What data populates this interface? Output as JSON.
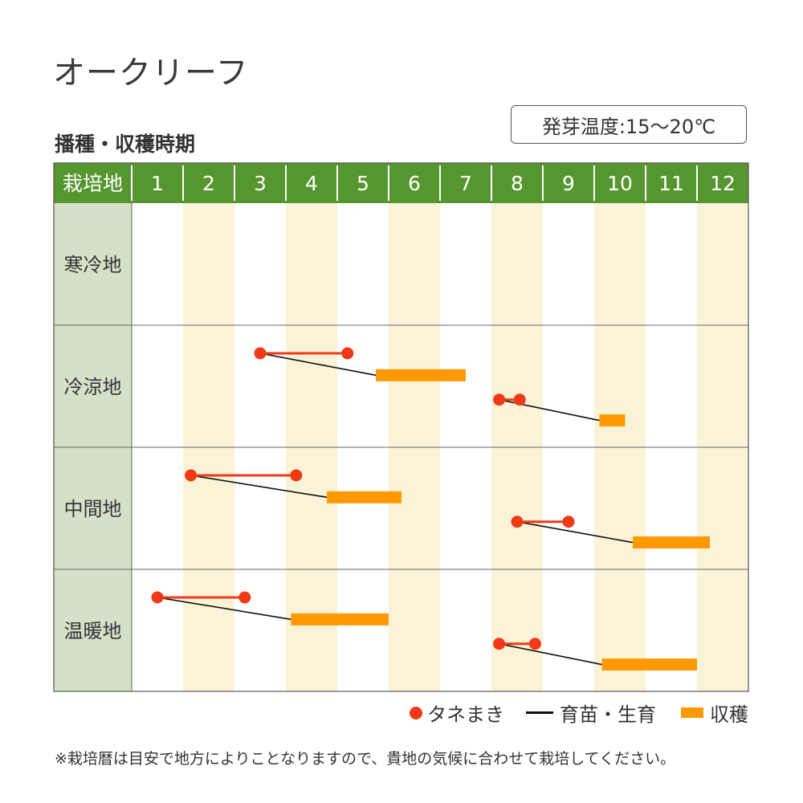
{
  "title": "オークリーフ",
  "subtitle": "播種・収穫時期",
  "germination_temp": "発芽温度:15〜20℃",
  "note": "※栽培暦は目安で地方によりことなりますので、貴地の気候に合わせて栽培してください。",
  "colors": {
    "header_green": "#56962f",
    "row_label_bg": "#d5e0c8",
    "stripe": "#fbf3d7",
    "sowing": "#f03a17",
    "seedling": "#111111",
    "harvest": "#ff9900"
  },
  "chart_data": {
    "type": "table",
    "header_label": "栽培地",
    "months": [
      "1",
      "2",
      "3",
      "4",
      "5",
      "6",
      "7",
      "8",
      "9",
      "10",
      "11",
      "12"
    ],
    "legend": {
      "sowing": "タネまき",
      "seedling": "育苗・生育",
      "harvest": "収穫"
    },
    "rows": [
      {
        "region": "寒冷地",
        "schedules": []
      },
      {
        "region": "冷涼地",
        "schedules": [
          {
            "lane": 0,
            "sow_start": 3.5,
            "sow_end": 5.2,
            "harvest_start": 5.75,
            "harvest_end": 7.5
          },
          {
            "lane": 1,
            "sow_start": 8.15,
            "sow_end": 8.55,
            "harvest_start": 10.1,
            "harvest_end": 10.6
          }
        ]
      },
      {
        "region": "中間地",
        "schedules": [
          {
            "lane": 0,
            "sow_start": 2.15,
            "sow_end": 4.2,
            "harvest_start": 4.8,
            "harvest_end": 6.25
          },
          {
            "lane": 1,
            "sow_start": 8.5,
            "sow_end": 9.5,
            "harvest_start": 10.75,
            "harvest_end": 12.25
          }
        ]
      },
      {
        "region": "温暖地",
        "schedules": [
          {
            "lane": 0,
            "sow_start": 1.5,
            "sow_end": 3.2,
            "harvest_start": 4.1,
            "harvest_end": 6.0
          },
          {
            "lane": 1,
            "sow_start": 8.15,
            "sow_end": 8.85,
            "harvest_start": 10.15,
            "harvest_end": 12.0
          }
        ]
      }
    ]
  }
}
